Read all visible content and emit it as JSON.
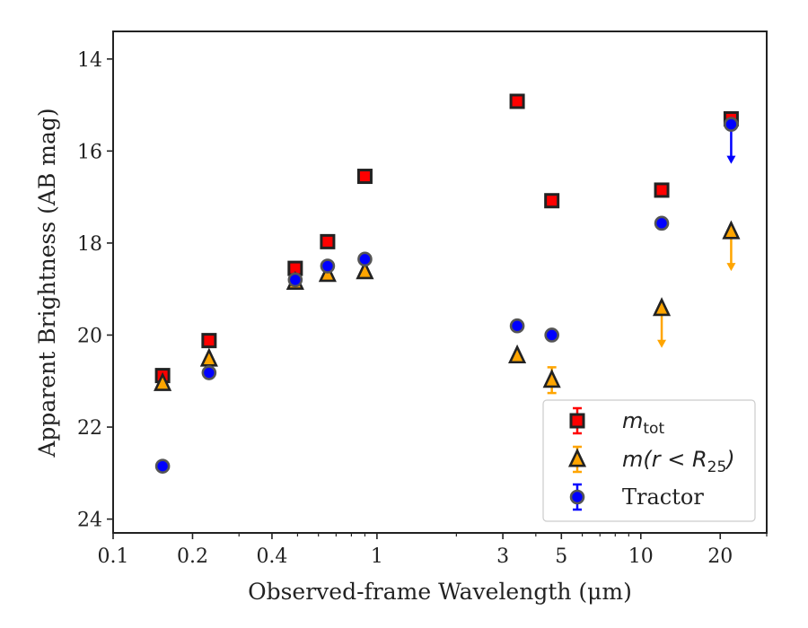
{
  "chart_data": {
    "type": "scatter",
    "xlabel": "Observed-frame Wavelength (μm)",
    "ylabel": "Apparent Brightness (AB mag)",
    "x_scale": "log",
    "xlim": [
      0.1,
      30
    ],
    "ylim": [
      24.3,
      13.4
    ],
    "y_inverted": true,
    "xticks": [
      {
        "value": 0.1,
        "label": "0.1"
      },
      {
        "value": 0.2,
        "label": "0.2"
      },
      {
        "value": 0.4,
        "label": "0.4"
      },
      {
        "value": 1,
        "label": "1"
      },
      {
        "value": 3,
        "label": "3"
      },
      {
        "value": 5,
        "label": "5"
      },
      {
        "value": 10,
        "label": "10"
      },
      {
        "value": 20,
        "label": "20"
      }
    ],
    "yticks": [
      {
        "value": 14,
        "label": "14"
      },
      {
        "value": 16,
        "label": "16"
      },
      {
        "value": 18,
        "label": "18"
      },
      {
        "value": 20,
        "label": "20"
      },
      {
        "value": 22,
        "label": "22"
      },
      {
        "value": 24,
        "label": "24"
      }
    ],
    "legend_position": "lower-right",
    "series": [
      {
        "name": "m_tot",
        "legend_main": "m",
        "legend_sub": "tot",
        "marker": "square",
        "color": "#ff0000",
        "points": [
          {
            "x": 0.154,
            "y": 20.88
          },
          {
            "x": 0.231,
            "y": 20.12
          },
          {
            "x": 0.49,
            "y": 18.55
          },
          {
            "x": 0.65,
            "y": 17.97
          },
          {
            "x": 0.9,
            "y": 16.55
          },
          {
            "x": 3.4,
            "y": 14.92
          },
          {
            "x": 4.6,
            "y": 17.08
          },
          {
            "x": 12.0,
            "y": 16.85
          },
          {
            "x": 22.0,
            "y": 15.3
          }
        ]
      },
      {
        "name": "m(r < R25)",
        "legend_main": "m(r < R",
        "legend_sub": "25",
        "legend_tail": ")",
        "marker": "triangle",
        "color": "#ffa500",
        "points": [
          {
            "x": 0.154,
            "y": 21.05
          },
          {
            "x": 0.231,
            "y": 20.52
          },
          {
            "x": 0.49,
            "y": 18.85
          },
          {
            "x": 0.65,
            "y": 18.68
          },
          {
            "x": 0.9,
            "y": 18.62
          },
          {
            "x": 3.4,
            "y": 20.45
          },
          {
            "x": 4.6,
            "y": 20.98,
            "err": 0.28
          },
          {
            "x": 12.0,
            "y": 19.42,
            "upper_limit": true
          },
          {
            "x": 22.0,
            "y": 17.75,
            "upper_limit": true
          }
        ]
      },
      {
        "name": "Tractor",
        "legend_main": "Tractor",
        "marker": "circle",
        "color": "#0000ff",
        "points": [
          {
            "x": 0.154,
            "y": 22.85
          },
          {
            "x": 0.231,
            "y": 20.82
          },
          {
            "x": 0.49,
            "y": 18.8
          },
          {
            "x": 0.65,
            "y": 18.5
          },
          {
            "x": 0.9,
            "y": 18.35
          },
          {
            "x": 3.4,
            "y": 19.8
          },
          {
            "x": 4.6,
            "y": 20.0
          },
          {
            "x": 12.0,
            "y": 17.57
          },
          {
            "x": 22.0,
            "y": 15.42,
            "upper_limit": true
          }
        ]
      }
    ]
  }
}
